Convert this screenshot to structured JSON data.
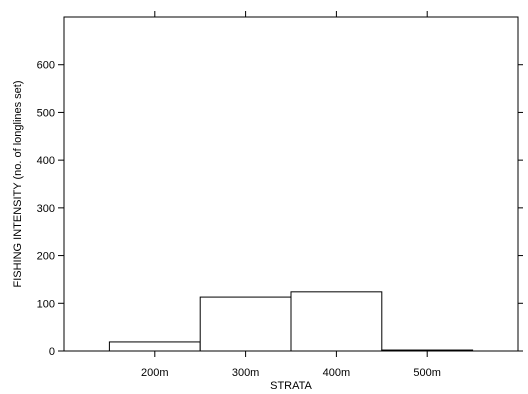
{
  "chart_data": {
    "type": "bar",
    "title": "",
    "xlabel": "STRATA",
    "ylabel": "FISHING INTENSITY (no. of longlines set)",
    "categories": [
      "200m",
      "300m",
      "400m",
      "500m"
    ],
    "values": [
      19,
      113,
      124,
      2
    ],
    "ylim": [
      0,
      700
    ],
    "yticks": [
      0,
      100,
      200,
      300,
      400,
      500,
      600
    ],
    "xlim": [
      100,
      600
    ],
    "bin_centers": [
      200,
      300,
      400,
      500
    ],
    "bin_width": 100,
    "grid": false,
    "legend": "none",
    "colors": {
      "bar_fill": "#ffffff",
      "bar_stroke": "#000000",
      "axis": "#000000"
    }
  }
}
